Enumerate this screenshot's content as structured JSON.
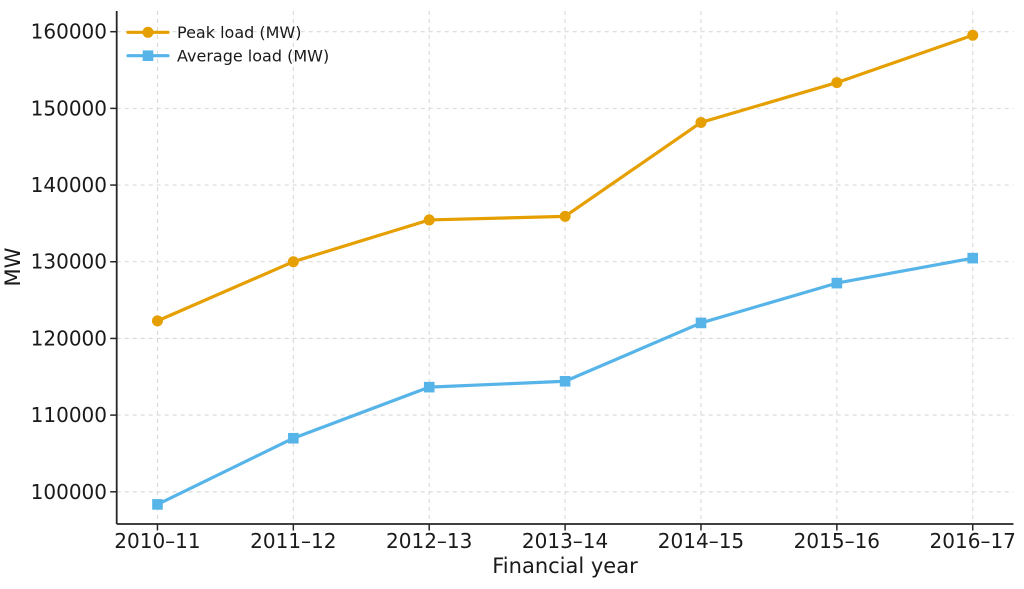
{
  "chart_data": {
    "type": "line",
    "title": "",
    "xlabel": "Financial year",
    "ylabel": "MW",
    "categories": [
      "2010–11",
      "2011–12",
      "2012–13",
      "2013–14",
      "2014–15",
      "2015–16",
      "2016–17"
    ],
    "series": [
      {
        "name": "Peak load (MW)",
        "color": "#E69F00",
        "marker": "circle",
        "values": [
          122287,
          130006,
          135453,
          135918,
          148166,
          153366,
          159542
        ]
      },
      {
        "name": "Average load (MW)",
        "color": "#56B4E9",
        "marker": "square",
        "values": [
          98355,
          106986,
          113648,
          114413,
          122023,
          127215,
          130471
        ]
      }
    ],
    "ylim": [
      95800,
      162700
    ],
    "yticks": [
      100000,
      110000,
      120000,
      130000,
      140000,
      150000,
      160000
    ],
    "grid": true,
    "grid_style": "dashed",
    "legend_position": "upper-left",
    "colors": {
      "background": "#ffffff",
      "grid": "#d9d9d9",
      "spine": "#262626",
      "tick": "#262626",
      "text": "#1a1a1a"
    }
  }
}
